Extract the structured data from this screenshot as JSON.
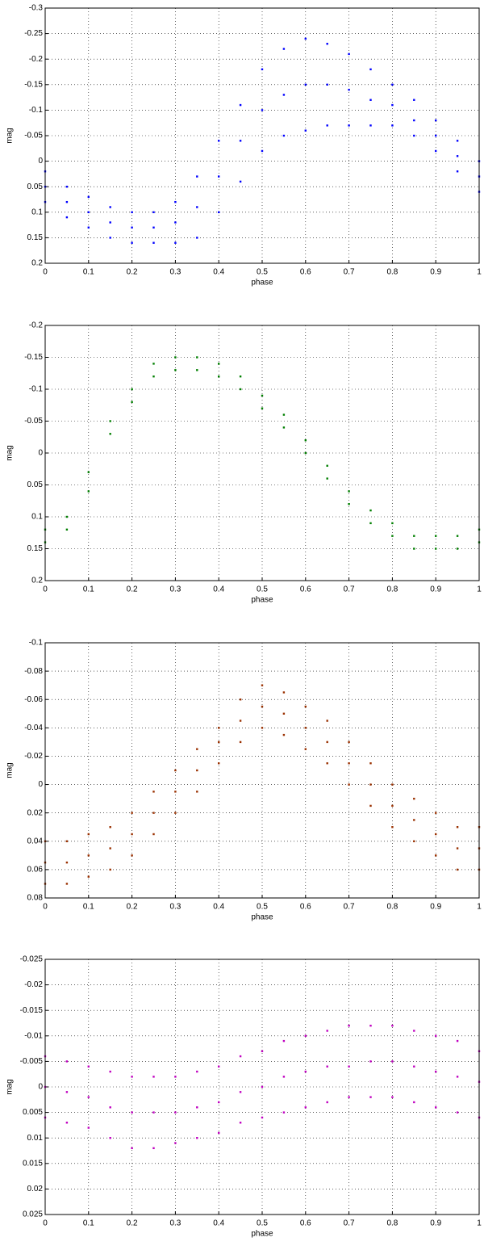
{
  "chart_data": [
    {
      "type": "scatter",
      "xlabel": "phase",
      "ylabel": "mag",
      "color": "#0000ff",
      "y_reversed": true,
      "grid": true,
      "xlim": [
        0,
        1
      ],
      "xticks": [
        0,
        0.1,
        0.2,
        0.3,
        0.4,
        0.5,
        0.6,
        0.7,
        0.8,
        0.9,
        1
      ],
      "ylim": [
        -0.3,
        0.2
      ],
      "yticks": [
        -0.3,
        -0.25,
        -0.2,
        -0.15,
        -0.1,
        -0.05,
        0,
        0.05,
        0.1,
        0.15,
        0.2
      ],
      "x": [
        0,
        0,
        0,
        0.05,
        0.05,
        0.05,
        0.1,
        0.1,
        0.1,
        0.15,
        0.15,
        0.15,
        0.2,
        0.2,
        0.2,
        0.25,
        0.25,
        0.25,
        0.3,
        0.3,
        0.3,
        0.35,
        0.35,
        0.35,
        0.4,
        0.4,
        0.4,
        0.45,
        0.45,
        0.45,
        0.5,
        0.5,
        0.5,
        0.55,
        0.55,
        0.55,
        0.6,
        0.6,
        0.6,
        0.65,
        0.65,
        0.65,
        0.7,
        0.7,
        0.7,
        0.75,
        0.75,
        0.75,
        0.8,
        0.8,
        0.8,
        0.85,
        0.85,
        0.85,
        0.9,
        0.9,
        0.9,
        0.95,
        0.95,
        0.95,
        1,
        1,
        1
      ],
      "values": [
        0.02,
        0.05,
        0.08,
        0.05,
        0.08,
        0.11,
        0.07,
        0.1,
        0.13,
        0.09,
        0.12,
        0.15,
        0.1,
        0.13,
        0.16,
        0.1,
        0.13,
        0.16,
        0.08,
        0.12,
        0.16,
        0.03,
        0.09,
        0.15,
        -0.04,
        0.03,
        0.1,
        -0.11,
        -0.04,
        0.04,
        -0.18,
        -0.1,
        -0.02,
        -0.22,
        -0.13,
        -0.05,
        -0.24,
        -0.15,
        -0.06,
        -0.23,
        -0.15,
        -0.07,
        -0.21,
        -0.14,
        -0.07,
        -0.18,
        -0.12,
        -0.07,
        -0.15,
        -0.11,
        -0.07,
        -0.12,
        -0.08,
        -0.05,
        -0.08,
        -0.05,
        -0.02,
        -0.04,
        -0.01,
        0.02,
        0,
        0.03,
        0.06
      ]
    },
    {
      "type": "scatter",
      "xlabel": "phase",
      "ylabel": "mag",
      "color": "#007f00",
      "y_reversed": true,
      "grid": true,
      "xlim": [
        0,
        1
      ],
      "xticks": [
        0,
        0.1,
        0.2,
        0.3,
        0.4,
        0.5,
        0.6,
        0.7,
        0.8,
        0.9,
        1
      ],
      "ylim": [
        -0.2,
        0.2
      ],
      "yticks": [
        -0.2,
        -0.15,
        -0.1,
        -0.05,
        0,
        0.05,
        0.1,
        0.15,
        0.2
      ],
      "x": [
        0,
        0,
        0.05,
        0.05,
        0.1,
        0.1,
        0.15,
        0.15,
        0.2,
        0.2,
        0.25,
        0.25,
        0.3,
        0.3,
        0.35,
        0.35,
        0.4,
        0.4,
        0.45,
        0.45,
        0.5,
        0.5,
        0.55,
        0.55,
        0.6,
        0.6,
        0.65,
        0.65,
        0.7,
        0.7,
        0.75,
        0.75,
        0.8,
        0.8,
        0.85,
        0.85,
        0.9,
        0.9,
        0.95,
        0.95,
        1,
        1
      ],
      "values": [
        0.12,
        0.14,
        0.1,
        0.12,
        0.03,
        0.06,
        -0.05,
        -0.03,
        -0.1,
        -0.08,
        -0.14,
        -0.12,
        -0.15,
        -0.13,
        -0.15,
        -0.13,
        -0.14,
        -0.12,
        -0.12,
        -0.1,
        -0.09,
        -0.07,
        -0.06,
        -0.04,
        -0.02,
        0,
        0.02,
        0.04,
        0.06,
        0.08,
        0.09,
        0.11,
        0.11,
        0.13,
        0.13,
        0.15,
        0.13,
        0.15,
        0.13,
        0.15,
        0.12,
        0.14
      ]
    },
    {
      "type": "scatter",
      "xlabel": "phase",
      "ylabel": "mag",
      "color": "#9a3000",
      "y_reversed": true,
      "grid": true,
      "xlim": [
        0,
        1
      ],
      "xticks": [
        0,
        0.1,
        0.2,
        0.3,
        0.4,
        0.5,
        0.6,
        0.7,
        0.8,
        0.9,
        1
      ],
      "ylim": [
        -0.1,
        0.08
      ],
      "yticks": [
        -0.1,
        -0.08,
        -0.06,
        -0.04,
        -0.02,
        0,
        0.02,
        0.04,
        0.06,
        0.08
      ],
      "x": [
        0,
        0,
        0,
        0.05,
        0.05,
        0.05,
        0.1,
        0.1,
        0.1,
        0.15,
        0.15,
        0.15,
        0.2,
        0.2,
        0.2,
        0.25,
        0.25,
        0.25,
        0.3,
        0.3,
        0.3,
        0.35,
        0.35,
        0.35,
        0.4,
        0.4,
        0.4,
        0.45,
        0.45,
        0.45,
        0.5,
        0.5,
        0.5,
        0.55,
        0.55,
        0.55,
        0.6,
        0.6,
        0.6,
        0.65,
        0.65,
        0.65,
        0.7,
        0.7,
        0.7,
        0.75,
        0.75,
        0.75,
        0.8,
        0.8,
        0.8,
        0.85,
        0.85,
        0.85,
        0.9,
        0.9,
        0.9,
        0.95,
        0.95,
        0.95,
        1,
        1,
        1
      ],
      "values": [
        0.04,
        0.055,
        0.07,
        0.04,
        0.055,
        0.07,
        0.035,
        0.05,
        0.065,
        0.03,
        0.045,
        0.06,
        0.02,
        0.035,
        0.05,
        0.005,
        0.02,
        0.035,
        -0.01,
        0.005,
        0.02,
        -0.025,
        -0.01,
        0.005,
        -0.04,
        -0.03,
        -0.015,
        -0.06,
        -0.045,
        -0.03,
        -0.07,
        -0.055,
        -0.04,
        -0.065,
        -0.05,
        -0.035,
        -0.055,
        -0.04,
        -0.025,
        -0.045,
        -0.03,
        -0.015,
        -0.03,
        -0.015,
        0,
        -0.015,
        0,
        0.015,
        0,
        0.015,
        0.03,
        0.01,
        0.025,
        0.04,
        0.02,
        0.035,
        0.05,
        0.03,
        0.045,
        0.06,
        0.03,
        0.045,
        0.06
      ]
    },
    {
      "type": "scatter",
      "xlabel": "phase",
      "ylabel": "mag",
      "color": "#c000c0",
      "y_reversed": true,
      "grid": true,
      "xlim": [
        0,
        1
      ],
      "xticks": [
        0,
        0.1,
        0.2,
        0.3,
        0.4,
        0.5,
        0.6,
        0.7,
        0.8,
        0.9,
        1
      ],
      "ylim": [
        -0.025,
        0.025
      ],
      "yticks": [
        -0.025,
        -0.02,
        -0.015,
        -0.01,
        -0.005,
        0,
        0.005,
        0.01,
        0.015,
        0.02,
        0.025
      ],
      "x": [
        0,
        0,
        0,
        0.05,
        0.05,
        0.05,
        0.1,
        0.1,
        0.1,
        0.15,
        0.15,
        0.15,
        0.2,
        0.2,
        0.2,
        0.25,
        0.25,
        0.25,
        0.3,
        0.3,
        0.3,
        0.35,
        0.35,
        0.35,
        0.4,
        0.4,
        0.4,
        0.45,
        0.45,
        0.45,
        0.5,
        0.5,
        0.5,
        0.55,
        0.55,
        0.55,
        0.6,
        0.6,
        0.6,
        0.65,
        0.65,
        0.65,
        0.7,
        0.7,
        0.7,
        0.75,
        0.75,
        0.75,
        0.8,
        0.8,
        0.8,
        0.85,
        0.85,
        0.85,
        0.9,
        0.9,
        0.9,
        0.95,
        0.95,
        0.95,
        1,
        1,
        1
      ],
      "values": [
        -0.006,
        0,
        0.006,
        -0.005,
        0.001,
        0.007,
        -0.004,
        0.002,
        0.008,
        -0.003,
        0.004,
        0.01,
        -0.002,
        0.005,
        0.012,
        -0.002,
        0.005,
        0.012,
        -0.002,
        0.005,
        0.011,
        -0.003,
        0.004,
        0.01,
        -0.004,
        0.003,
        0.009,
        -0.006,
        0.001,
        0.007,
        -0.007,
        0,
        0.006,
        -0.009,
        -0.002,
        0.005,
        -0.01,
        -0.003,
        0.004,
        -0.011,
        -0.004,
        0.003,
        -0.012,
        -0.004,
        0.002,
        -0.012,
        -0.005,
        0.002,
        -0.012,
        -0.005,
        0.002,
        -0.011,
        -0.004,
        0.003,
        -0.01,
        -0.003,
        0.004,
        -0.009,
        -0.002,
        0.005,
        -0.007,
        -0.001,
        0.006
      ]
    }
  ]
}
